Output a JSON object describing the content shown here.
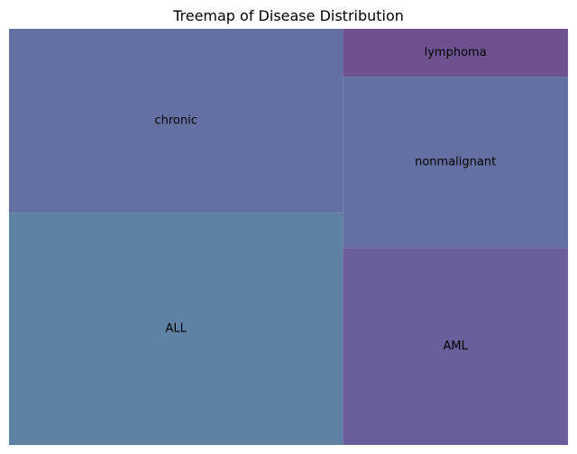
{
  "chart_data": {
    "type": "treemap",
    "title": "Treemap of Disease Distribution",
    "items": [
      {
        "label": "ALL",
        "value": 173,
        "color": "#5f81a3"
      },
      {
        "label": "chronic",
        "value": 137,
        "color": "#6570a2"
      },
      {
        "label": "AML",
        "value": 99,
        "color": "#6c5e9b"
      },
      {
        "label": "nonmalignant",
        "value": 86,
        "color": "#6570a2"
      },
      {
        "label": "lymphoma",
        "value": 24,
        "color": "#6e5290"
      }
    ]
  }
}
